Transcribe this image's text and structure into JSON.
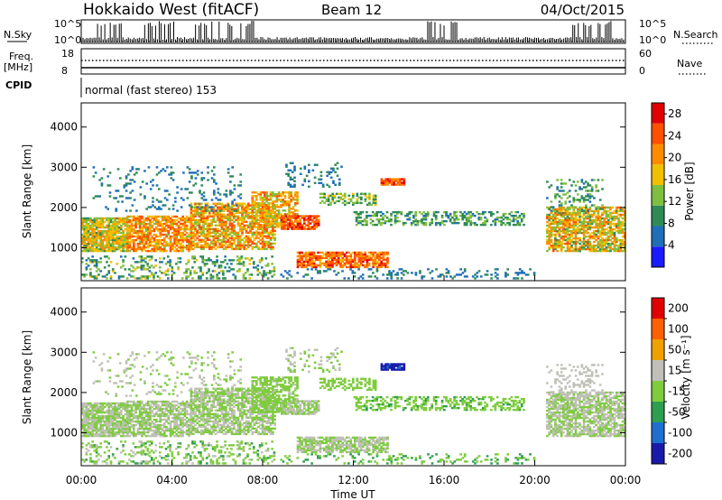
{
  "header": {
    "radar": "Hokkaido West (fitACF)",
    "beam": "Beam 12",
    "date": "04/Oct/2015"
  },
  "noise_panel": {
    "left_label": "N.Sky",
    "right_label": "N.Search",
    "tick_top": "10^5",
    "tick_bottom": "10^0"
  },
  "freq_panel": {
    "left_label_1": "Freq.",
    "left_label_2": "[MHz]",
    "left_tick_top": "18",
    "left_tick_bottom": "8",
    "right_label": "Nave",
    "right_tick_top": "60",
    "right_tick_bottom": "0"
  },
  "cpid_panel": {
    "label": "CPID",
    "mode_text": "normal (fast stereo) 153"
  },
  "chart_data": [
    {
      "type": "heatmap",
      "name": "power",
      "ylabel": "Slant Range [km]",
      "xlabel": "Time UT",
      "x_ticks": [
        "00:00",
        "04:00",
        "08:00",
        "12:00",
        "16:00",
        "20:00",
        "00:00"
      ],
      "xlim_hours": [
        0,
        24
      ],
      "y_ticks": [
        1000,
        2000,
        3000,
        4000
      ],
      "ylim": [
        180,
        4600
      ],
      "colorbar": {
        "label": "Power [dB]",
        "ticks": [
          4,
          8,
          12,
          16,
          20,
          24,
          28
        ],
        "range": [
          0,
          30
        ],
        "colors": [
          "#1a1aff",
          "#1f6fb8",
          "#2e8b57",
          "#7fbf3f",
          "#f0c000",
          "#ff8c00",
          "#ff5000",
          "#e00000"
        ]
      }
    },
    {
      "type": "heatmap",
      "name": "velocity",
      "ylabel": "Slant Range [km]",
      "xlabel": "Time UT",
      "x_ticks": [
        "00:00",
        "04:00",
        "08:00",
        "12:00",
        "16:00",
        "20:00",
        "00:00"
      ],
      "xlim_hours": [
        0,
        24
      ],
      "y_ticks": [
        1000,
        2000,
        3000,
        4000
      ],
      "ylim": [
        180,
        4600
      ],
      "colorbar": {
        "label": "Velocity [m s⁻¹]",
        "ticks": [
          200,
          100,
          50,
          15,
          -15,
          -50,
          -100,
          -200
        ],
        "range": [
          -250,
          250
        ],
        "colors": [
          "#1a1aaa",
          "#1f6fd0",
          "#2e9e50",
          "#7fcc3f",
          "#c0c0b8",
          "#f0a000",
          "#ff6000",
          "#e00000"
        ]
      }
    }
  ]
}
